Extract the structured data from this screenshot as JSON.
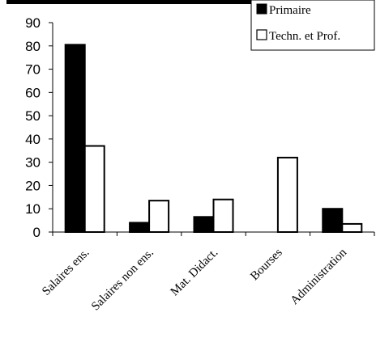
{
  "chart_data": {
    "type": "bar",
    "categories": [
      "Salaires ens.",
      "Salaires non ens.",
      "Mat. Didact.",
      "Bourses",
      "Administration"
    ],
    "series": [
      {
        "name": "Primaire",
        "values": [
          80.5,
          4,
          6.5,
          0,
          10
        ],
        "color": "#000000"
      },
      {
        "name": "Techn. et Prof.",
        "values": [
          37,
          13.5,
          14,
          32,
          3.5
        ],
        "color": "#ffffff"
      }
    ],
    "ylim": [
      0,
      90
    ],
    "yticks": [
      "0",
      "10",
      "20",
      "30",
      "40",
      "50",
      "60",
      "70",
      "80",
      "90"
    ],
    "grid": false,
    "legend": "top-right"
  }
}
